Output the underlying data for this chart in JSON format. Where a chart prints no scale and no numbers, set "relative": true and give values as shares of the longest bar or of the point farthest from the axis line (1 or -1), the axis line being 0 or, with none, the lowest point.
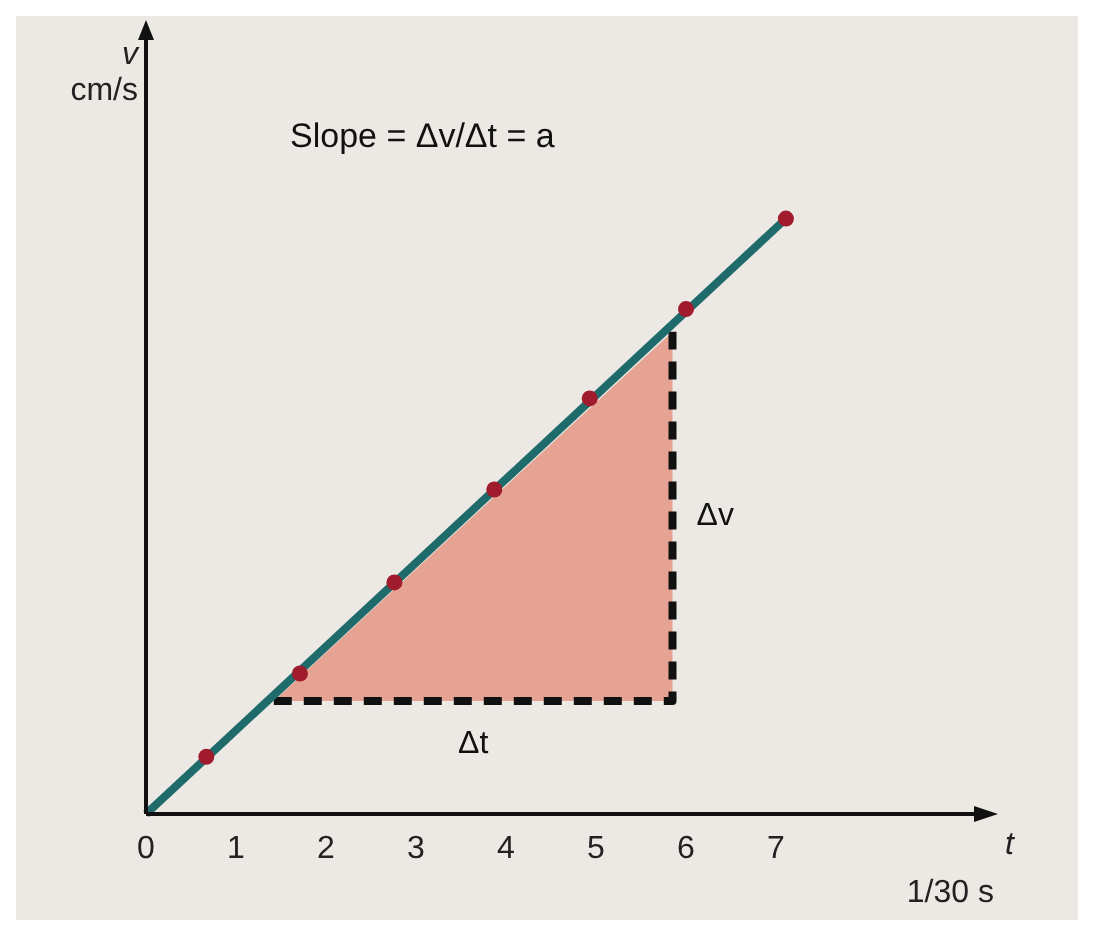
{
  "chart_data": {
    "type": "line",
    "relative": true,
    "xlabel": "t\n1/30 s",
    "ylabel": "v\ncm/s",
    "xlim": [
      0,
      9.2
    ],
    "xticks": [
      0,
      1,
      2,
      3,
      4,
      5,
      6,
      7
    ],
    "grid": false,
    "series": [
      {
        "type": "area",
        "color": "#e6a394",
        "x": [
          1.42,
          5.85
        ],
        "values": [
          0.19,
          0.81
        ],
        "line_style": "dashed"
      },
      {
        "color": "#1f6b6b",
        "x": [
          0,
          7.11
        ],
        "values": [
          0,
          1
        ]
      },
      {
        "type": "scatter",
        "color": "#a01c2c",
        "marker": "circle",
        "x": [
          0.67,
          1.71,
          2.76,
          3.87,
          4.93,
          6.0,
          7.11
        ],
        "values": [
          0.096,
          0.236,
          0.389,
          0.545,
          0.698,
          0.848,
          1
        ]
      }
    ],
    "annotations": [
      "Slope = Δv/Δt = a",
      "Δv",
      "Δt"
    ]
  }
}
